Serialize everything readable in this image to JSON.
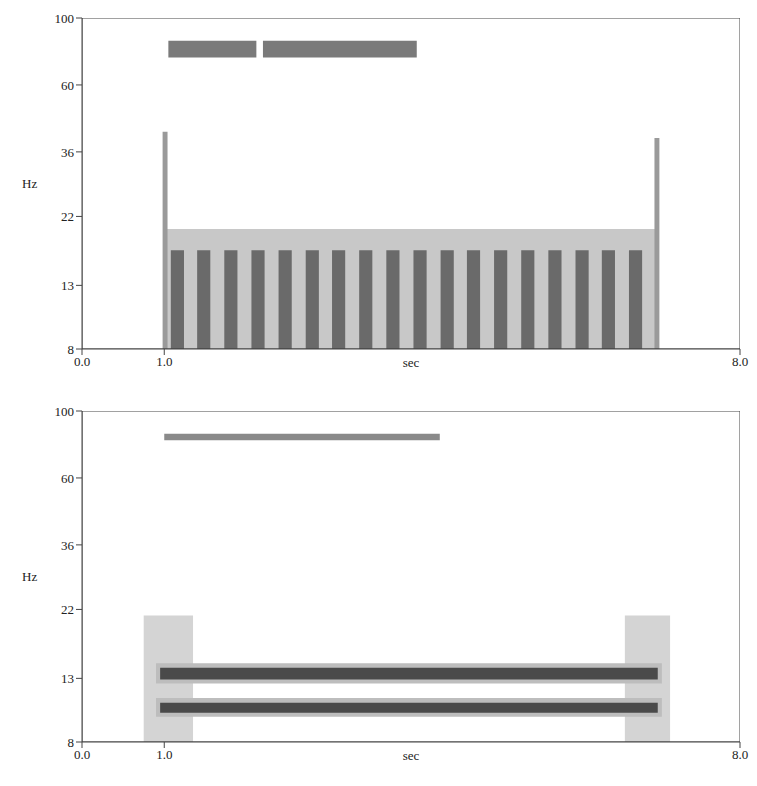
{
  "chart_data": [
    {
      "type": "spectrogram",
      "x_label": "sec",
      "y_label": "Hz",
      "log": "y",
      "xlim": [
        0,
        8
      ],
      "ylim": [
        8,
        100
      ],
      "xticks": [
        {
          "value": 0,
          "label": "0.0"
        },
        {
          "value": 1,
          "label": "1.0"
        },
        {
          "value": 8,
          "label": "8.0"
        }
      ],
      "yticks": [
        8,
        13,
        22,
        36,
        60,
        100
      ],
      "bands": [
        {
          "x": [
            1.0,
            7.0
          ],
          "y": [
            8,
            20
          ],
          "color": "#c8c8c8"
        },
        {
          "x": [
            1.08,
            1.24
          ],
          "y": [
            8,
            17
          ],
          "color": "#6a6a6a"
        },
        {
          "x": [
            1.4,
            1.56
          ],
          "y": [
            8,
            17
          ],
          "color": "#6a6a6a"
        },
        {
          "x": [
            1.73,
            1.89
          ],
          "y": [
            8,
            17
          ],
          "color": "#6a6a6a"
        },
        {
          "x": [
            2.06,
            2.22
          ],
          "y": [
            8,
            17
          ],
          "color": "#6a6a6a"
        },
        {
          "x": [
            2.39,
            2.55
          ],
          "y": [
            8,
            17
          ],
          "color": "#6a6a6a"
        },
        {
          "x": [
            2.72,
            2.88
          ],
          "y": [
            8,
            17
          ],
          "color": "#6a6a6a"
        },
        {
          "x": [
            3.04,
            3.2
          ],
          "y": [
            8,
            17
          ],
          "color": "#6a6a6a"
        },
        {
          "x": [
            3.37,
            3.53
          ],
          "y": [
            8,
            17
          ],
          "color": "#6a6a6a"
        },
        {
          "x": [
            3.7,
            3.86
          ],
          "y": [
            8,
            17
          ],
          "color": "#6a6a6a"
        },
        {
          "x": [
            4.03,
            4.19
          ],
          "y": [
            8,
            17
          ],
          "color": "#6a6a6a"
        },
        {
          "x": [
            4.36,
            4.52
          ],
          "y": [
            8,
            17
          ],
          "color": "#6a6a6a"
        },
        {
          "x": [
            4.68,
            4.84
          ],
          "y": [
            8,
            17
          ],
          "color": "#6a6a6a"
        },
        {
          "x": [
            5.01,
            5.17
          ],
          "y": [
            8,
            17
          ],
          "color": "#6a6a6a"
        },
        {
          "x": [
            5.34,
            5.5
          ],
          "y": [
            8,
            17
          ],
          "color": "#6a6a6a"
        },
        {
          "x": [
            5.67,
            5.83
          ],
          "y": [
            8,
            17
          ],
          "color": "#6a6a6a"
        },
        {
          "x": [
            6.0,
            6.16
          ],
          "y": [
            8,
            17
          ],
          "color": "#6a6a6a"
        },
        {
          "x": [
            6.32,
            6.48
          ],
          "y": [
            8,
            17
          ],
          "color": "#6a6a6a"
        },
        {
          "x": [
            6.65,
            6.81
          ],
          "y": [
            8,
            17
          ],
          "color": "#6a6a6a"
        },
        {
          "x": [
            0.98,
            1.04
          ],
          "y": [
            8,
            42
          ],
          "color": "#9a9a9a"
        },
        {
          "x": [
            6.96,
            7.02
          ],
          "y": [
            8,
            40
          ],
          "color": "#9a9a9a"
        },
        {
          "x": [
            1.05,
            2.12
          ],
          "y": [
            74,
            84
          ],
          "color": "#7a7a7a"
        },
        {
          "x": [
            2.2,
            4.07
          ],
          "y": [
            74,
            84
          ],
          "color": "#7a7a7a"
        }
      ]
    },
    {
      "type": "spectrogram",
      "x_label": "sec",
      "y_label": "Hz",
      "log": "y",
      "xlim": [
        0,
        8
      ],
      "ylim": [
        8,
        100
      ],
      "xticks": [
        {
          "value": 0,
          "label": "0.0"
        },
        {
          "value": 1,
          "label": "1.0"
        },
        {
          "value": 8,
          "label": "8.0"
        }
      ],
      "yticks": [
        8,
        13,
        22,
        36,
        60,
        100
      ],
      "bands": [
        {
          "x": [
            0.75,
            1.35
          ],
          "y": [
            8,
            21
          ],
          "color": "#d4d4d4"
        },
        {
          "x": [
            6.6,
            7.15
          ],
          "y": [
            8,
            21
          ],
          "color": "#d4d4d4"
        },
        {
          "x": [
            0.9,
            7.05
          ],
          "y": [
            12.5,
            14.6
          ],
          "color": "#bdbdbd"
        },
        {
          "x": [
            0.9,
            7.05
          ],
          "y": [
            9.7,
            11.2
          ],
          "color": "#bdbdbd"
        },
        {
          "x": [
            0.95,
            7.0
          ],
          "y": [
            12.9,
            14.1
          ],
          "color": "#4a4a4a"
        },
        {
          "x": [
            0.95,
            7.0
          ],
          "y": [
            10.0,
            10.8
          ],
          "color": "#4a4a4a"
        },
        {
          "x": [
            1.0,
            4.35
          ],
          "y": [
            80,
            84
          ],
          "color": "#8a8a8a"
        }
      ]
    }
  ]
}
